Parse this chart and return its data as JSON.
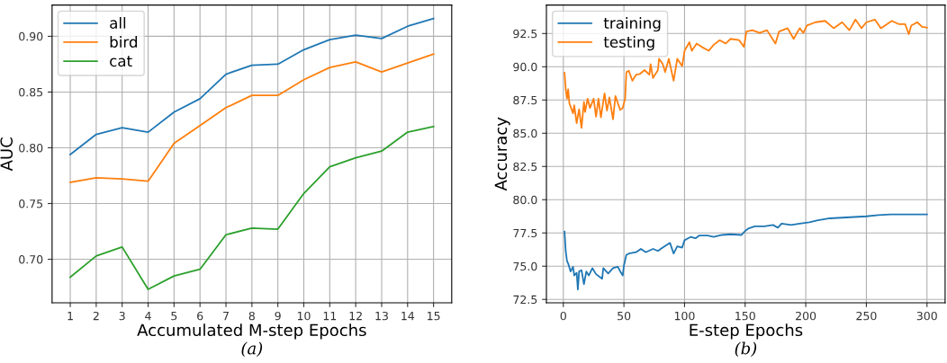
{
  "chart_data": [
    {
      "type": "line",
      "xlabel": "Accumulated M-step Epochs",
      "ylabel": "AUC",
      "annotations": [
        "(a)"
      ],
      "x": [
        1,
        2,
        3,
        4,
        5,
        6,
        7,
        8,
        9,
        10,
        11,
        12,
        13,
        14,
        15
      ],
      "xlim": [
        0.3,
        15.7
      ],
      "xticks": [
        1,
        2,
        3,
        4,
        5,
        6,
        7,
        8,
        9,
        10,
        11,
        12,
        13,
        14,
        15
      ],
      "ylim": [
        0.661,
        0.928
      ],
      "yticks": [
        {
          "value": 0.7,
          "label": "0.70"
        },
        {
          "value": 0.75,
          "label": "0.75"
        },
        {
          "value": 0.8,
          "label": "0.80"
        },
        {
          "value": 0.85,
          "label": "0.85"
        },
        {
          "value": 0.9,
          "label": "0.90"
        }
      ],
      "grid": true,
      "legend": "top left",
      "series": [
        {
          "name": "all",
          "color": "#1f77b4",
          "values": [
            0.794,
            0.812,
            0.818,
            0.814,
            0.832,
            0.844,
            0.866,
            0.874,
            0.875,
            0.888,
            0.897,
            0.901,
            0.898,
            0.909,
            0.916
          ]
        },
        {
          "name": "bird",
          "color": "#ff7f0e",
          "values": [
            0.769,
            0.773,
            0.772,
            0.77,
            0.804,
            0.82,
            0.836,
            0.847,
            0.847,
            0.861,
            0.872,
            0.877,
            0.868,
            0.876,
            0.884
          ]
        },
        {
          "name": "cat",
          "color": "#2ca02c",
          "values": [
            0.684,
            0.703,
            0.711,
            0.673,
            0.685,
            0.691,
            0.722,
            0.728,
            0.727,
            0.759,
            0.783,
            0.791,
            0.797,
            0.814,
            0.819
          ]
        }
      ]
    },
    {
      "type": "line",
      "xlabel": "E-step Epochs",
      "ylabel": "Accuracy",
      "annotations": [
        "(b)"
      ],
      "xlim": [
        -13.95,
        314.95
      ],
      "xticks": [
        0,
        50,
        100,
        150,
        200,
        250,
        300
      ],
      "ylim": [
        72.25,
        94.64
      ],
      "yticks": [
        {
          "value": 72.5,
          "label": "72.5"
        },
        {
          "value": 75,
          "label": "75.0"
        },
        {
          "value": 77.5,
          "label": "77.5"
        },
        {
          "value": 80,
          "label": "80.0"
        },
        {
          "value": 82.5,
          "label": "82.5"
        },
        {
          "value": 85,
          "label": "85.0"
        },
        {
          "value": 87.5,
          "label": "87.5"
        },
        {
          "value": 90,
          "label": "90.0"
        },
        {
          "value": 92.5,
          "label": "92.5"
        }
      ],
      "grid": true,
      "legend": "top left",
      "series": [
        {
          "name": "training",
          "color": "#1f77b4",
          "x": [
            1,
            2,
            3,
            4,
            6,
            8,
            9,
            11,
            12,
            13,
            15,
            17,
            19,
            21,
            24,
            27,
            32,
            33,
            37,
            41,
            45,
            47,
            49,
            50,
            52,
            54,
            60,
            64,
            68,
            74,
            78,
            82,
            88,
            91,
            94,
            98,
            100,
            105,
            109,
            112,
            119,
            124,
            131,
            138,
            147,
            150,
            153,
            158,
            166,
            173,
            177,
            180,
            188,
            195,
            203,
            210,
            220,
            230,
            240,
            250,
            260,
            270,
            282,
            292,
            300
          ],
          "values": [
            77.6,
            76.1,
            75.4,
            75.2,
            74.6,
            74.95,
            74.3,
            74.5,
            73.25,
            74.6,
            74.7,
            73.65,
            74.6,
            74.3,
            74.85,
            74.4,
            74.05,
            74.85,
            74.45,
            74.85,
            74.95,
            74.6,
            74.3,
            75.05,
            75.85,
            75.95,
            76.05,
            76.3,
            76.05,
            76.3,
            76.15,
            76.4,
            76.75,
            75.95,
            76.5,
            76.4,
            76.95,
            77.2,
            77.1,
            77.3,
            77.3,
            77.2,
            77.35,
            77.4,
            77.35,
            77.65,
            77.85,
            78.0,
            78.0,
            78.1,
            77.9,
            78.2,
            78.1,
            78.2,
            78.3,
            78.45,
            78.6,
            78.65,
            78.7,
            78.75,
            78.85,
            78.9,
            78.9,
            78.9,
            78.9
          ]
        },
        {
          "name": "testing",
          "color": "#ff7f0e",
          "x": [
            1,
            2,
            3,
            4,
            5,
            8,
            9,
            11,
            13,
            15,
            17,
            18,
            20,
            22,
            25,
            27,
            29,
            31,
            34,
            36,
            38,
            41,
            43,
            45,
            47,
            49,
            51,
            52,
            54,
            57,
            60,
            63,
            67,
            71,
            72,
            74,
            78,
            79,
            82,
            84,
            87,
            91,
            94,
            98,
            100,
            104,
            106,
            110,
            114,
            120,
            124,
            129,
            134,
            138,
            145,
            149,
            151,
            156,
            162,
            168,
            175,
            178,
            185,
            190,
            195,
            198,
            201,
            208,
            216,
            223,
            230,
            236,
            241,
            246,
            250,
            257,
            262,
            271,
            277,
            282,
            285,
            287,
            292,
            296,
            300
          ],
          "values": [
            89.55,
            88.3,
            87.6,
            88.3,
            87.25,
            86.5,
            87.1,
            85.75,
            86.8,
            85.4,
            87.35,
            86.6,
            87.6,
            86.9,
            87.6,
            86.25,
            87.6,
            86.2,
            88.0,
            86.7,
            87.7,
            86.05,
            87.8,
            87.25,
            86.75,
            86.9,
            87.6,
            89.6,
            89.7,
            88.95,
            89.4,
            89.45,
            89.75,
            89.4,
            90.2,
            89.15,
            89.75,
            90.6,
            90.2,
            89.6,
            90.6,
            88.95,
            90.6,
            90.05,
            91.2,
            91.85,
            91.2,
            91.75,
            91.5,
            91.2,
            91.65,
            92.0,
            91.75,
            92.1,
            92.0,
            91.5,
            92.65,
            92.75,
            92.55,
            92.75,
            91.75,
            92.65,
            92.9,
            92.1,
            92.9,
            92.55,
            93.1,
            93.35,
            93.45,
            92.9,
            93.35,
            92.75,
            93.55,
            92.9,
            93.35,
            93.55,
            92.9,
            93.45,
            93.2,
            93.2,
            92.45,
            93.1,
            93.35,
            93.0,
            92.95
          ]
        }
      ]
    }
  ]
}
